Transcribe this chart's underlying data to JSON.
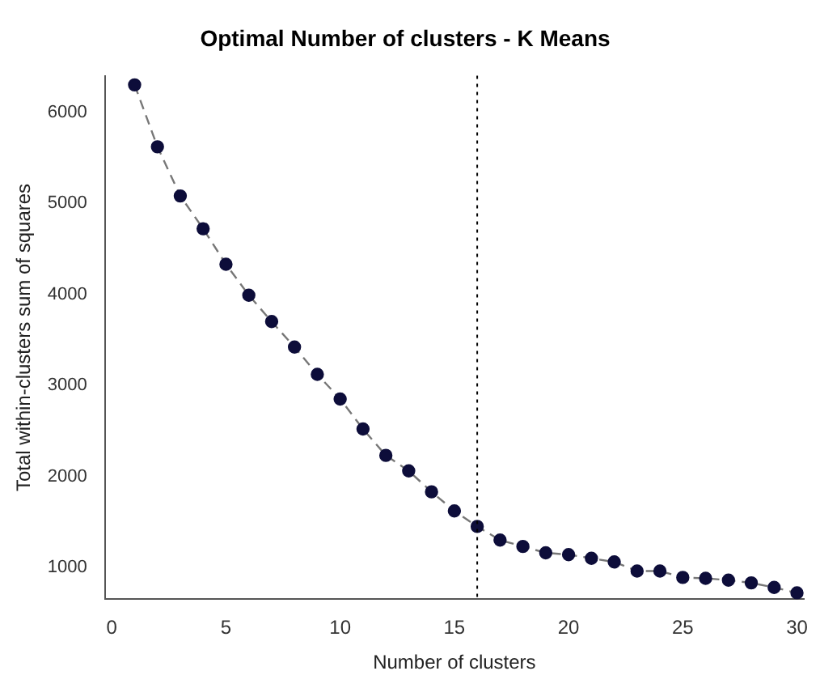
{
  "chart_data": {
    "type": "line",
    "title": "Optimal Number of clusters - K Means",
    "xlabel": "Number of clusters",
    "ylabel": "Total within-clusters sum of squares",
    "x": [
      1,
      2,
      3,
      4,
      5,
      6,
      7,
      8,
      9,
      10,
      11,
      12,
      13,
      14,
      15,
      16,
      17,
      18,
      19,
      20,
      21,
      22,
      23,
      24,
      25,
      26,
      27,
      28,
      29,
      30
    ],
    "series": [
      {
        "color": "#0d0d3a",
        "values": [
          6300,
          5620,
          5080,
          4720,
          4330,
          3990,
          3700,
          3420,
          3120,
          2850,
          2520,
          2230,
          2060,
          1830,
          1620,
          1450,
          1300,
          1230,
          1160,
          1140,
          1100,
          1060,
          960,
          960,
          890,
          880,
          860,
          830,
          780,
          720
        ]
      }
    ],
    "xlim": [
      -0.3,
      30.3
    ],
    "xticks": [
      0,
      5,
      10,
      15,
      20,
      25,
      30
    ],
    "ylim": [
      650,
      6400
    ],
    "yticks": [
      1000,
      2000,
      3000,
      4000,
      5000,
      6000
    ],
    "ref_lines": [
      {
        "axis": "x",
        "value": 16,
        "line_style": "dotted",
        "color": "#000000"
      }
    ],
    "grid": false,
    "legend": false,
    "marker": "circle",
    "line_style": "dashed"
  }
}
